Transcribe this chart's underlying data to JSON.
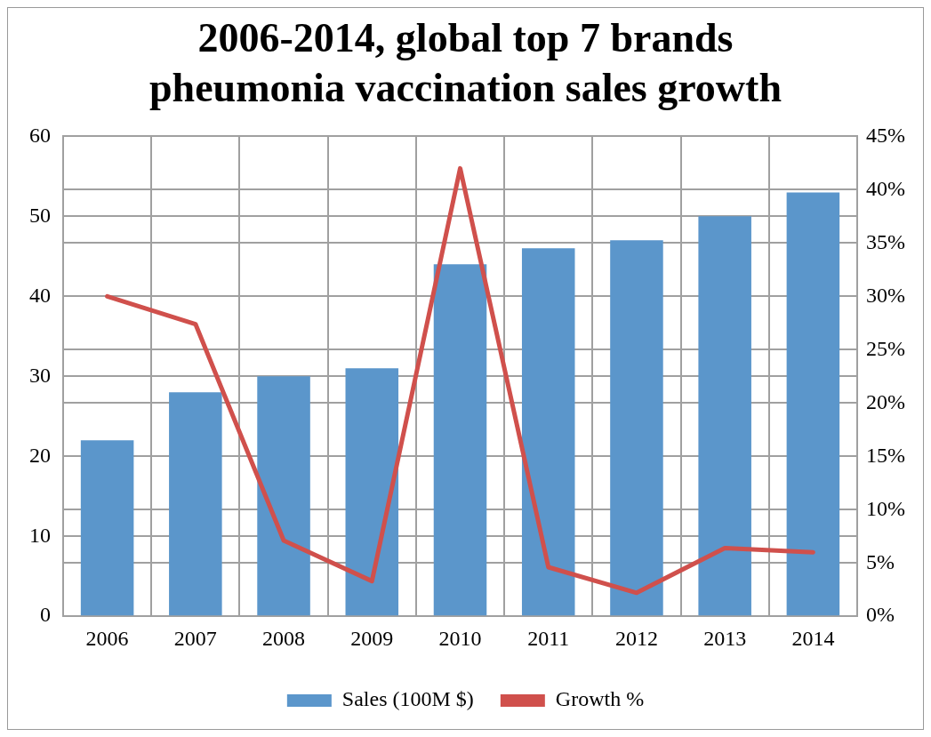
{
  "chart_data": {
    "type": "bar",
    "title": "2006-2014, global top 7 brands\npheumonia vaccination sales growth",
    "categories": [
      "2006",
      "2007",
      "2008",
      "2009",
      "2010",
      "2011",
      "2012",
      "2013",
      "2014"
    ],
    "series": [
      {
        "name": "Sales (100M $)",
        "color": "#5b96cb",
        "values": [
          22,
          28,
          30,
          31,
          44,
          46,
          47,
          50,
          53
        ]
      },
      {
        "name": "Growth %",
        "type": "line",
        "axis": "y2",
        "color": "#d0504c",
        "values": [
          30,
          27.4,
          7.1,
          3.3,
          42,
          4.6,
          2.2,
          6.4,
          6.0
        ]
      }
    ],
    "ylim": [
      0,
      60
    ],
    "yticks": [
      0,
      10,
      20,
      30,
      40,
      50,
      60
    ],
    "y2lim": [
      0,
      45
    ],
    "y2ticks": [
      {
        "value": 0,
        "label": "0%"
      },
      {
        "value": 5,
        "label": "5%"
      },
      {
        "value": 10,
        "label": "10%"
      },
      {
        "value": 15,
        "label": "15%"
      },
      {
        "value": 20,
        "label": "20%"
      },
      {
        "value": 25,
        "label": "25%"
      },
      {
        "value": 30,
        "label": "30%"
      },
      {
        "value": 35,
        "label": "35%"
      },
      {
        "value": 40,
        "label": "40%"
      },
      {
        "value": 45,
        "label": "45%"
      }
    ],
    "grid": true,
    "legend": "bottom",
    "marker": "none"
  }
}
